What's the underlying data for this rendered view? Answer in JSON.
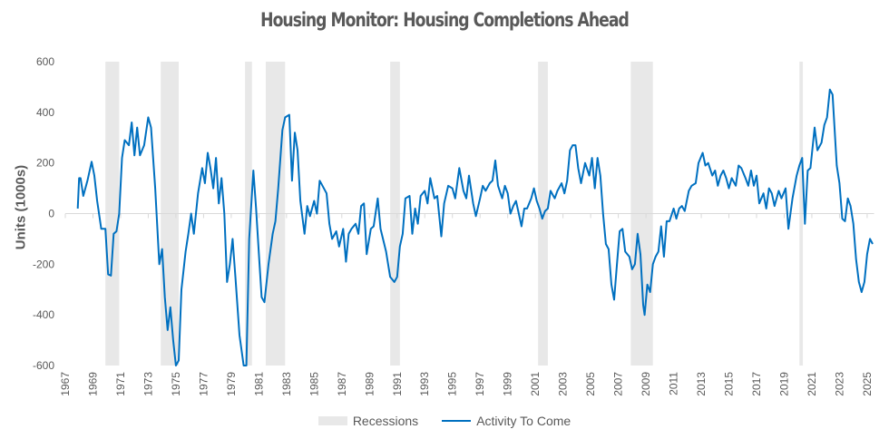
{
  "chart_data": {
    "type": "line",
    "title": "Housing Monitor: Housing Completions Ahead",
    "xlabel": "",
    "ylabel": "Units (1000s)",
    "xlim": [
      1967,
      2025.5
    ],
    "ylim": [
      -600,
      600
    ],
    "yticks": [
      -600,
      -400,
      -200,
      0,
      200,
      400,
      600
    ],
    "xticks": [
      1967,
      1969,
      1971,
      1973,
      1975,
      1977,
      1979,
      1981,
      1983,
      1985,
      1987,
      1989,
      1991,
      1993,
      1995,
      1997,
      1999,
      2001,
      2003,
      2005,
      2007,
      2009,
      2011,
      2013,
      2015,
      2017,
      2019,
      2021,
      2023,
      2025
    ],
    "legend": {
      "position": "bottom",
      "entries": [
        "Recessions",
        "Activity To Come"
      ]
    },
    "colors": {
      "series": "#0070c0",
      "recession": "#e8e8e8",
      "axis": "#d9d9d9"
    },
    "recessions": [
      [
        1969.9,
        1970.9
      ],
      [
        1973.9,
        1975.2
      ],
      [
        1980.0,
        1980.5
      ],
      [
        1981.5,
        1982.9
      ],
      [
        1990.5,
        1991.2
      ],
      [
        2001.2,
        2001.9
      ],
      [
        2007.9,
        2009.5
      ],
      [
        2020.1,
        2020.35
      ]
    ],
    "series": [
      {
        "name": "Activity To Come",
        "x": [
          1967.9,
          1968.0,
          1968.1,
          1968.3,
          1968.6,
          1968.9,
          1969.1,
          1969.3,
          1969.6,
          1969.9,
          1970.1,
          1970.3,
          1970.5,
          1970.7,
          1970.9,
          1971.1,
          1971.3,
          1971.6,
          1971.8,
          1972.0,
          1972.2,
          1972.4,
          1972.7,
          1973.0,
          1973.2,
          1973.5,
          1973.8,
          1974.0,
          1974.2,
          1974.4,
          1974.6,
          1974.8,
          1975.0,
          1975.2,
          1975.4,
          1975.7,
          1975.9,
          1976.1,
          1976.3,
          1976.6,
          1976.9,
          1977.1,
          1977.3,
          1977.5,
          1977.7,
          1977.9,
          1978.1,
          1978.3,
          1978.5,
          1978.7,
          1978.9,
          1979.1,
          1979.3,
          1979.6,
          1979.9,
          1980.1,
          1980.3,
          1980.6,
          1980.8,
          1981.0,
          1981.2,
          1981.4,
          1981.7,
          1982.0,
          1982.2,
          1982.4,
          1982.7,
          1982.9,
          1983.2,
          1983.4,
          1983.6,
          1983.8,
          1984.0,
          1984.3,
          1984.5,
          1984.7,
          1985.0,
          1985.2,
          1985.4,
          1985.6,
          1985.9,
          1986.1,
          1986.3,
          1986.6,
          1986.8,
          1987.1,
          1987.3,
          1987.5,
          1987.7,
          1988.0,
          1988.2,
          1988.4,
          1988.6,
          1988.8,
          1989.1,
          1989.3,
          1989.6,
          1989.8,
          1990.2,
          1990.5,
          1990.8,
          1991.0,
          1991.2,
          1991.4,
          1991.6,
          1991.9,
          1992.1,
          1992.3,
          1992.5,
          1992.7,
          1993.0,
          1993.2,
          1993.4,
          1993.7,
          1993.9,
          1994.2,
          1994.4,
          1994.7,
          1995.0,
          1995.2,
          1995.5,
          1995.8,
          1996.0,
          1996.2,
          1996.5,
          1996.7,
          1997.0,
          1997.2,
          1997.4,
          1997.7,
          1997.9,
          1998.1,
          1998.3,
          1998.6,
          1998.8,
          1999.0,
          1999.2,
          1999.4,
          1999.6,
          1999.8,
          2000.0,
          2000.2,
          2000.4,
          2000.7,
          2000.9,
          2001.1,
          2001.3,
          2001.5,
          2001.7,
          2001.9,
          2002.1,
          2002.4,
          2002.6,
          2002.9,
          2003.1,
          2003.3,
          2003.5,
          2003.7,
          2003.9,
          2004.1,
          2004.3,
          2004.6,
          2004.9,
          2005.1,
          2005.3,
          2005.5,
          2005.7,
          2005.9,
          2006.1,
          2006.3,
          2006.5,
          2006.7,
          2006.9,
          2007.1,
          2007.3,
          2007.5,
          2007.8,
          2008.0,
          2008.2,
          2008.4,
          2008.6,
          2008.8,
          2008.9,
          2009.1,
          2009.3,
          2009.5,
          2009.7,
          2009.9,
          2010.1,
          2010.3,
          2010.5,
          2010.7,
          2011.0,
          2011.2,
          2011.4,
          2011.6,
          2011.8,
          2012.1,
          2012.3,
          2012.6,
          2012.8,
          2013.1,
          2013.3,
          2013.5,
          2013.8,
          2014.0,
          2014.2,
          2014.4,
          2014.6,
          2014.8,
          2015.0,
          2015.2,
          2015.5,
          2015.7,
          2015.9,
          2016.2,
          2016.4,
          2016.6,
          2016.8,
          2017.0,
          2017.2,
          2017.5,
          2017.7,
          2017.9,
          2018.1,
          2018.3,
          2018.6,
          2018.8,
          2019.1,
          2019.3,
          2019.6,
          2019.9,
          2020.1,
          2020.3,
          2020.5,
          2020.7,
          2020.9,
          2021.2,
          2021.4,
          2021.7,
          2021.9,
          2022.1,
          2022.3,
          2022.5,
          2022.8,
          2023.0,
          2023.2,
          2023.4,
          2023.6,
          2023.8,
          2024.0,
          2024.2,
          2024.4,
          2024.6,
          2024.8,
          2025.0,
          2025.2,
          2025.4
        ],
        "y": [
          20,
          140,
          140,
          70,
          130,
          205,
          150,
          50,
          -60,
          -60,
          -240,
          -245,
          -80,
          -70,
          0,
          220,
          290,
          270,
          360,
          230,
          340,
          230,
          270,
          380,
          340,
          100,
          -200,
          -140,
          -330,
          -460,
          -370,
          -500,
          -600,
          -580,
          -300,
          -150,
          -80,
          0,
          -80,
          80,
          180,
          120,
          240,
          180,
          100,
          220,
          40,
          140,
          0,
          -270,
          -200,
          -100,
          -250,
          -480,
          -600,
          -600,
          -100,
          170,
          20,
          -160,
          -330,
          -350,
          -200,
          -80,
          -30,
          100,
          330,
          380,
          390,
          130,
          320,
          250,
          50,
          -80,
          30,
          -10,
          50,
          0,
          130,
          110,
          80,
          -40,
          -100,
          -70,
          -130,
          -60,
          -190,
          -80,
          -60,
          -40,
          -80,
          30,
          40,
          -160,
          -60,
          -50,
          60,
          -60,
          -150,
          -250,
          -270,
          -250,
          -130,
          -80,
          60,
          70,
          -80,
          20,
          -40,
          70,
          90,
          40,
          140,
          60,
          70,
          -90,
          40,
          110,
          100,
          60,
          180,
          90,
          60,
          150,
          40,
          -10,
          60,
          110,
          90,
          120,
          130,
          210,
          110,
          60,
          110,
          80,
          0,
          30,
          50,
          0,
          -50,
          20,
          20,
          60,
          100,
          50,
          20,
          -20,
          10,
          20,
          90,
          60,
          90,
          120,
          80,
          130,
          250,
          270,
          270,
          180,
          120,
          200,
          150,
          220,
          100,
          220,
          150,
          0,
          -120,
          -140,
          -280,
          -340,
          -200,
          -70,
          -60,
          -150,
          -170,
          -220,
          -200,
          -80,
          -160,
          -360,
          -400,
          -280,
          -310,
          -200,
          -170,
          -150,
          -50,
          -170,
          -30,
          -30,
          20,
          -20,
          20,
          30,
          10,
          90,
          110,
          120,
          200,
          240,
          190,
          200,
          150,
          170,
          110,
          150,
          170,
          140,
          100,
          140,
          110,
          190,
          180,
          140,
          110,
          170,
          110,
          150,
          40,
          80,
          20,
          100,
          80,
          30,
          90,
          60,
          100,
          -60,
          60,
          150,
          190,
          220,
          -40,
          170,
          180,
          340,
          250,
          280,
          350,
          380,
          490,
          470,
          190,
          120,
          -20,
          -30,
          60,
          30,
          -40,
          -180,
          -270,
          -310,
          -270,
          -160,
          -100,
          -120
        ]
      }
    ]
  }
}
